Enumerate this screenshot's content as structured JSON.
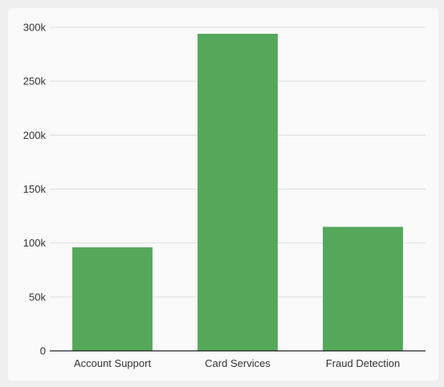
{
  "chart_data": {
    "type": "bar",
    "title": "",
    "xlabel": "",
    "ylabel": "",
    "categories": [
      "Account Support",
      "Card Services",
      "Fraud Detection"
    ],
    "values": [
      96000,
      294000,
      115000
    ],
    "ylim": [
      0,
      300000
    ],
    "yticks": [
      0,
      50000,
      100000,
      150000,
      200000,
      250000,
      300000
    ],
    "ytick_labels": [
      "0",
      "50k",
      "100k",
      "150k",
      "200k",
      "250k",
      "300k"
    ],
    "grid": true,
    "legend": "none",
    "colors": {
      "bar": "#55a75a",
      "grid": "#dddddd",
      "axis": "#222222",
      "text": "#333333",
      "background": "#fafafa",
      "page": "#efefef"
    }
  }
}
